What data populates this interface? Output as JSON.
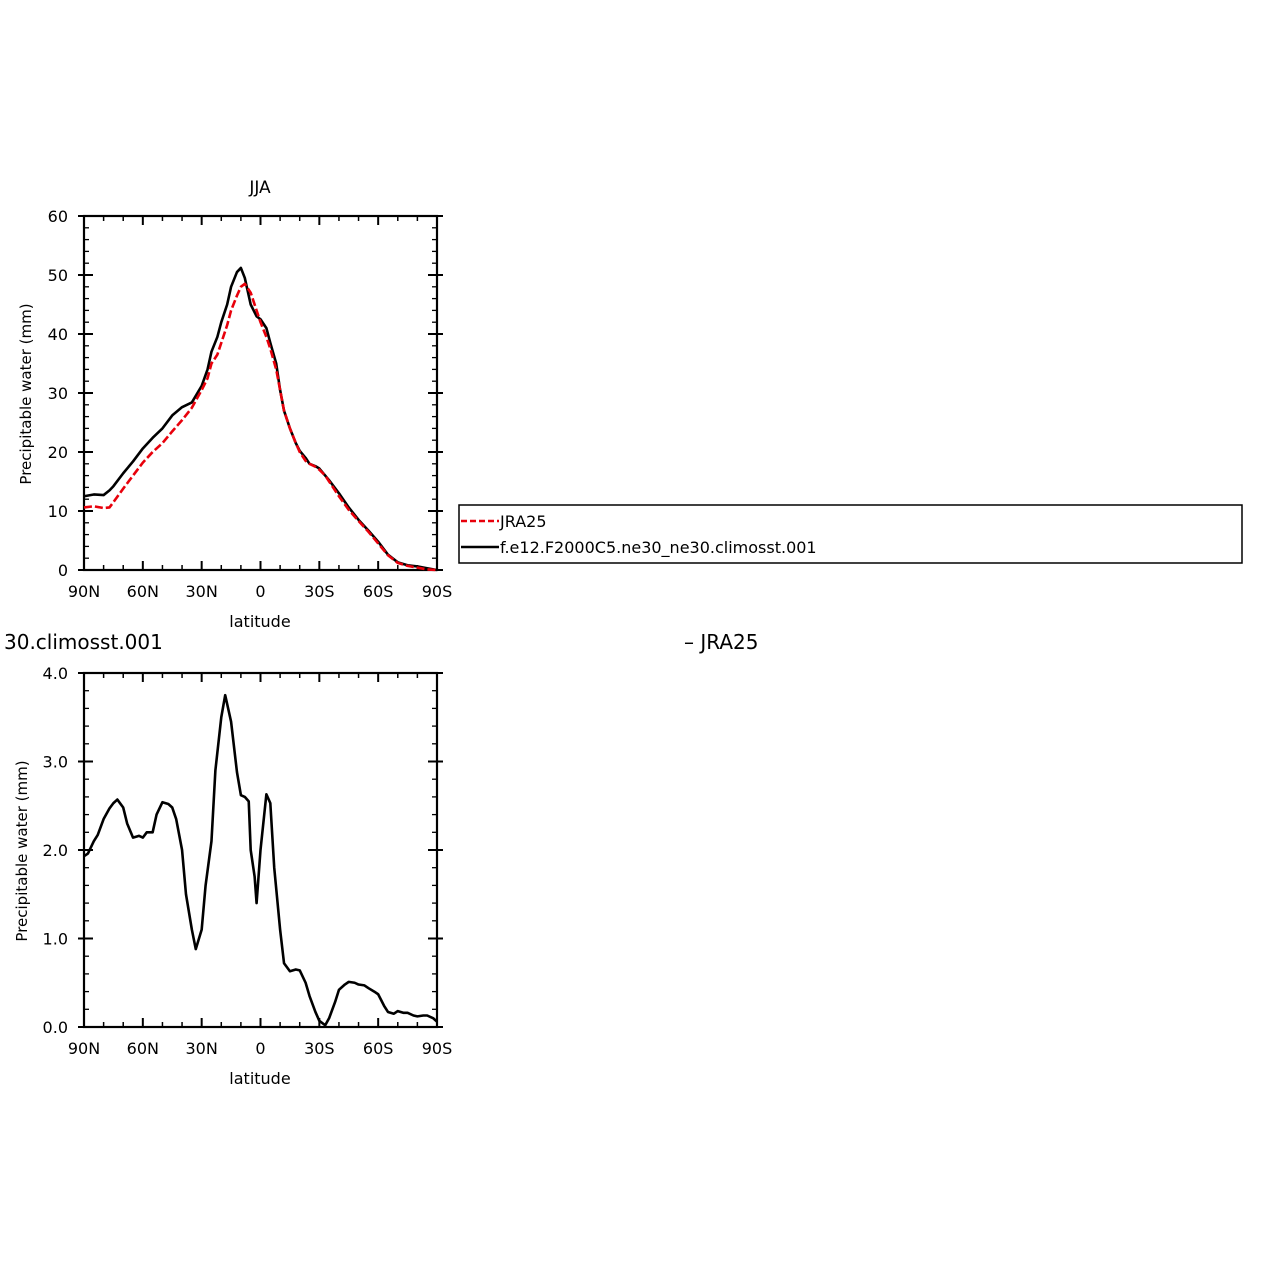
{
  "chart_data": [
    {
      "type": "line",
      "title": "JJA",
      "xlabel": "latitude",
      "ylabel": "Precipitable water (mm)",
      "xlim": [
        90,
        -90
      ],
      "ylim": [
        0,
        60
      ],
      "x_ticks": [
        90,
        60,
        30,
        0,
        -30,
        -60,
        -90
      ],
      "x_tick_labels": [
        "90N",
        "60N",
        "30N",
        "0",
        "30S",
        "60S",
        "90S"
      ],
      "y_ticks": [
        0,
        10,
        20,
        30,
        40,
        50,
        60
      ],
      "y_tick_labels": [
        "0",
        "10",
        "20",
        "30",
        "40",
        "50",
        "60"
      ],
      "series": [
        {
          "name": "JRA25",
          "color": "#e8000b",
          "dash": "dashed",
          "x": [
            90,
            85,
            80,
            77,
            75,
            70,
            65,
            60,
            55,
            50,
            45,
            40,
            35,
            30,
            27,
            25,
            22,
            20,
            17,
            15,
            12,
            10,
            8,
            5,
            2,
            0,
            -3,
            -5,
            -8,
            -10,
            -12,
            -15,
            -18,
            -20,
            -23,
            -25,
            -28,
            -30,
            -33,
            -35,
            -40,
            -45,
            -50,
            -55,
            -60,
            -65,
            -70,
            -75,
            -80,
            -85,
            -90
          ],
          "y": [
            10.6,
            10.8,
            10.5,
            10.6,
            11.5,
            13.8,
            16,
            18.2,
            20,
            21.5,
            23.5,
            25.4,
            27.5,
            30.5,
            32.5,
            35,
            36.5,
            38.5,
            41.5,
            44,
            46.5,
            48,
            48.5,
            47,
            44,
            42,
            39.5,
            37.5,
            34,
            30.5,
            27,
            24,
            21.5,
            20,
            18.5,
            18,
            17.5,
            17,
            16,
            15,
            12.5,
            10.2,
            8.3,
            6.5,
            4.5,
            2.5,
            1.2,
            0.7,
            0.4,
            0.1,
            0.0
          ]
        },
        {
          "name": "f.e12.F2000C5.ne30_ne30.climosst.001",
          "color": "#000000",
          "dash": "solid",
          "x": [
            90,
            85,
            80,
            77,
            75,
            70,
            65,
            60,
            55,
            50,
            45,
            40,
            35,
            30,
            27,
            25,
            22,
            20,
            17,
            15,
            12,
            10,
            8,
            5,
            2,
            0,
            -3,
            -5,
            -8,
            -10,
            -12,
            -15,
            -18,
            -20,
            -23,
            -25,
            -28,
            -30,
            -33,
            -35,
            -40,
            -45,
            -50,
            -55,
            -60,
            -65,
            -70,
            -75,
            -80,
            -85,
            -90
          ],
          "y": [
            12.5,
            12.8,
            12.7,
            13.5,
            14.2,
            16.4,
            18.4,
            20.6,
            22.4,
            24,
            26.2,
            27.6,
            28.4,
            31.2,
            34,
            37,
            39.5,
            42,
            45,
            48,
            50.5,
            51.2,
            49.5,
            45,
            43,
            42.5,
            41,
            38.5,
            35,
            30.5,
            27,
            24,
            21.5,
            20.2,
            19,
            18,
            17.6,
            17.2,
            16,
            15.2,
            13,
            10.6,
            8.5,
            6.7,
            4.8,
            2.6,
            1.3,
            0.8,
            0.6,
            0.3,
            0.0
          ]
        }
      ],
      "legend": {
        "placement": "right",
        "entries": [
          "JRA25",
          "f.e12.F2000C5.ne30_ne30.climosst.001"
        ]
      }
    },
    {
      "type": "line",
      "title": "30.climosst.001",
      "title_right": "– JRA25",
      "xlabel": "latitude",
      "ylabel": "Precipitable water (mm)",
      "xlim": [
        90,
        -90
      ],
      "ylim": [
        0,
        4
      ],
      "x_ticks": [
        90,
        60,
        30,
        0,
        -30,
        -60,
        -90
      ],
      "x_tick_labels": [
        "90N",
        "60N",
        "30N",
        "0",
        "30S",
        "60S",
        "90S"
      ],
      "y_ticks": [
        0,
        1,
        2,
        3,
        4
      ],
      "y_tick_labels": [
        "0.0",
        "1.0",
        "2.0",
        "3.0",
        "4.0"
      ],
      "series": [
        {
          "color": "#000000",
          "dash": "solid",
          "x": [
            90,
            88,
            85,
            83,
            80,
            77,
            75,
            73,
            70,
            68,
            65,
            62,
            60,
            58,
            55,
            53,
            50,
            47,
            45,
            43,
            40,
            38,
            35,
            33,
            30,
            28,
            25,
            23,
            20,
            18,
            15,
            12,
            10,
            8,
            6,
            5,
            3,
            2,
            0,
            -3,
            -5,
            -7,
            -10,
            -12,
            -15,
            -18,
            -20,
            -23,
            -25,
            -28,
            -30,
            -33,
            -35,
            -38,
            -40,
            -43,
            -45,
            -48,
            -50,
            -53,
            -55,
            -58,
            -60,
            -63,
            -65,
            -68,
            -70,
            -73,
            -75,
            -78,
            -80,
            -83,
            -85,
            -88,
            -90
          ],
          "y": [
            1.93,
            1.96,
            2.1,
            2.17,
            2.35,
            2.47,
            2.53,
            2.57,
            2.48,
            2.3,
            2.14,
            2.16,
            2.14,
            2.2,
            2.2,
            2.4,
            2.54,
            2.52,
            2.48,
            2.35,
            2.0,
            1.5,
            1.1,
            0.88,
            1.1,
            1.6,
            2.1,
            2.9,
            3.5,
            3.75,
            3.45,
            2.88,
            2.62,
            2.6,
            2.55,
            2.0,
            1.7,
            1.4,
            2.0,
            2.63,
            2.53,
            1.8,
            1.1,
            0.72,
            0.63,
            0.65,
            0.64,
            0.5,
            0.35,
            0.17,
            0.07,
            0.02,
            0.1,
            0.28,
            0.42,
            0.48,
            0.51,
            0.5,
            0.48,
            0.47,
            0.44,
            0.4,
            0.37,
            0.24,
            0.17,
            0.15,
            0.18,
            0.16,
            0.16,
            0.13,
            0.12,
            0.13,
            0.13,
            0.1,
            0.06
          ]
        }
      ]
    }
  ]
}
